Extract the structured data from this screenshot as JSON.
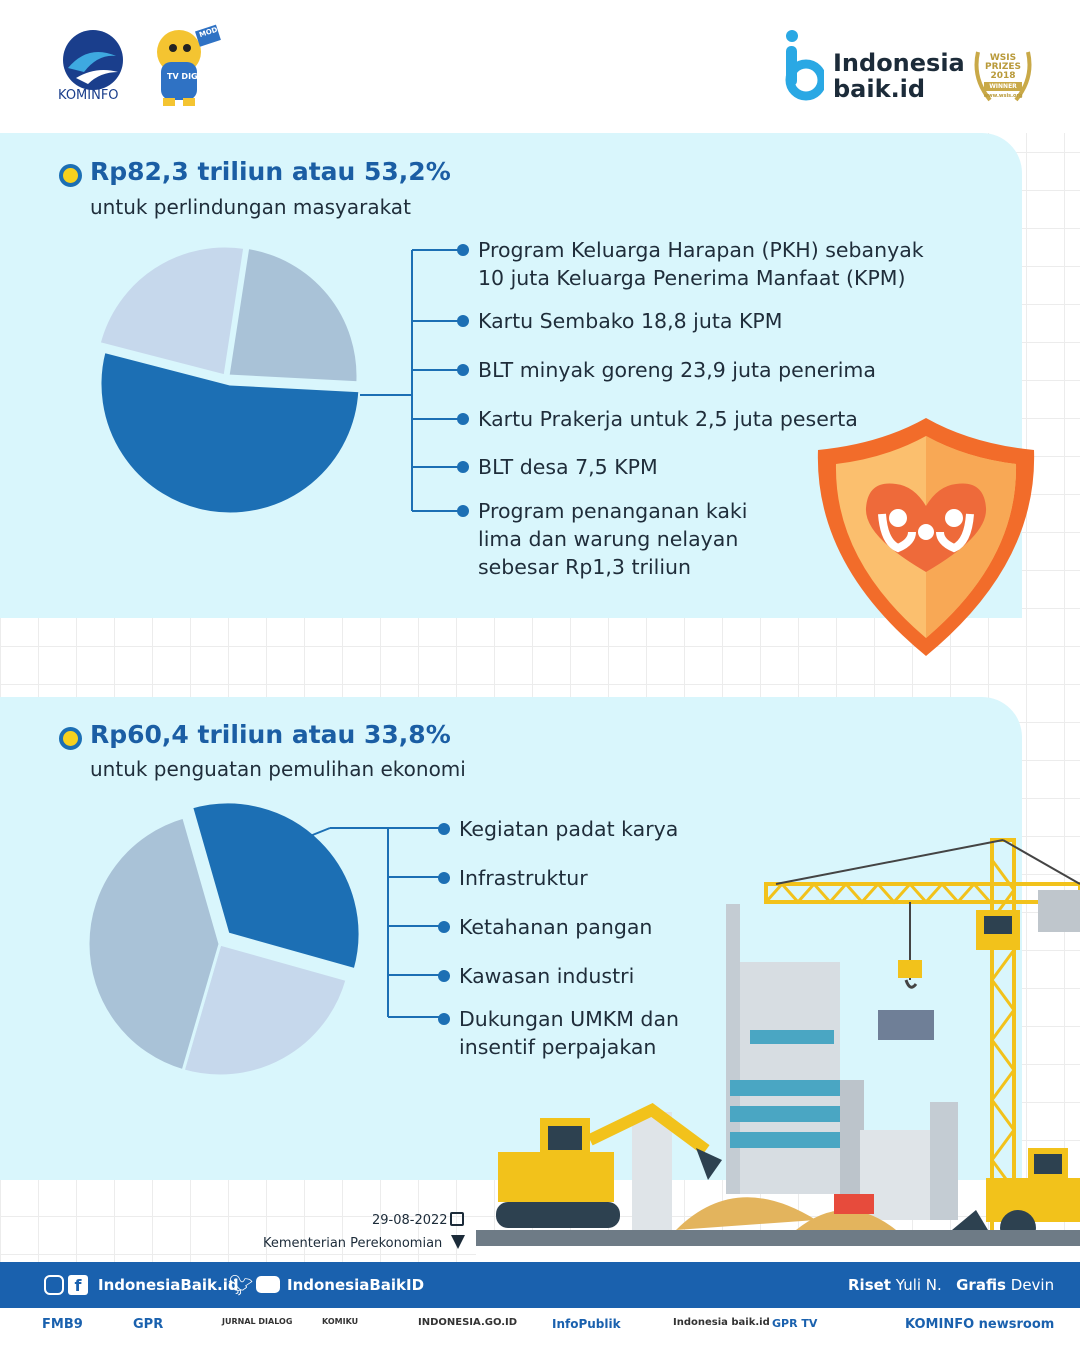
{
  "header": {
    "kominfo_label": "KOMINFO",
    "mascot_label": "TV DIGITAL",
    "mascot_flag": "MODI",
    "brand_line1": "Indonesia",
    "brand_line2": "baik.id",
    "award_line1": "WSIS",
    "award_line2": "PRIZES",
    "award_line3": "2018",
    "award_line4": "WINNER",
    "award_url": "www.wsis.org"
  },
  "section1": {
    "title": "Rp82,3 triliun atau 53,2%",
    "subtitle": "untuk perlindungan masyarakat",
    "items": [
      {
        "line1": "Program Keluarga Harapan (PKH) sebanyak",
        "line2": "10 juta Keluarga Penerima Manfaat (KPM)"
      },
      {
        "line1": "Kartu Sembako 18,8 juta KPM"
      },
      {
        "line1": "BLT minyak goreng 23,9 juta penerima"
      },
      {
        "line1": "Kartu Prakerja untuk 2,5 juta peserta"
      },
      {
        "line1": "BLT desa 7,5 KPM"
      },
      {
        "line1": "Program penanganan kaki",
        "line2": "lima dan warung nelayan",
        "line3": "sebesar Rp1,3 triliun"
      }
    ]
  },
  "section2": {
    "title": "Rp60,4 triliun atau 33,8%",
    "subtitle": "untuk penguatan pemulihan ekonomi",
    "items": [
      {
        "line1": "Kegiatan padat karya"
      },
      {
        "line1": "Infrastruktur"
      },
      {
        "line1": "Ketahanan pangan"
      },
      {
        "line1": "Kawasan industri"
      },
      {
        "line1": "Dukungan UMKM dan",
        "line2": "insentif perpajakan"
      }
    ]
  },
  "chart_data": [
    {
      "type": "pie",
      "highlighted_share": 53.2,
      "other_share": 46.8
    },
    {
      "type": "pie",
      "highlighted_share": 33.8,
      "other_share": 66.2
    }
  ],
  "meta": {
    "date": "29-08-2022",
    "source": "Kementerian Perekonomian"
  },
  "footer": {
    "social_left": "IndonesiaBaik.id",
    "social_right": "IndonesiaBaikID",
    "riset_label": "Riset",
    "riset_name": "Yuli N.",
    "grafis_label": "Grafis",
    "grafis_name": "Devin"
  },
  "partners": [
    "FMB9",
    "GPR",
    "JURNAL DIALOG",
    "KOMIKU",
    "INDONESIA.GO.ID",
    "InfoPublik",
    "Indonesia baik.id",
    "GPR TV",
    "KOMINFO newsroom"
  ],
  "colors": {
    "accent": "#1c6fb4",
    "panel": "#d9f6fc",
    "footer": "#1a61ae",
    "pie_light": "#c6d8ec",
    "pie_mid": "#a9c2d7"
  }
}
